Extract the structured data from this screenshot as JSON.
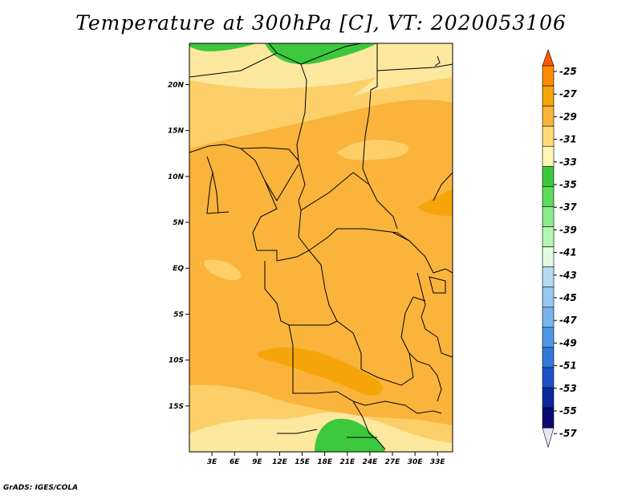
{
  "title": "Temperature at 300hPa [C], VT: 2020053106",
  "credit": "GrADS: IGES/COLA",
  "map": {
    "lat_labels": [
      "20N",
      "15N",
      "10N",
      "5N",
      "EQ",
      "5S",
      "10S",
      "15S"
    ],
    "lat_values": [
      20,
      15,
      10,
      5,
      0,
      -5,
      -10,
      -15
    ],
    "lon_labels": [
      "3E",
      "6E",
      "9E",
      "12E",
      "15E",
      "18E",
      "21E",
      "24E",
      "27E",
      "30E",
      "33E"
    ],
    "lon_values": [
      3,
      6,
      9,
      12,
      15,
      18,
      21,
      24,
      27,
      30,
      33
    ],
    "lon_range": [
      0,
      35
    ],
    "lat_range": [
      -20,
      24.5
    ]
  },
  "legend": {
    "labels": [
      "-25",
      "-27",
      "-29",
      "-31",
      "-33",
      "-35",
      "-37",
      "-39",
      "-41",
      "-43",
      "-45",
      "-47",
      "-49",
      "-51",
      "-53",
      "-55",
      "-57"
    ],
    "colors": [
      "#ff5a00",
      "#ff8c00",
      "#f5a50a",
      "#fab43c",
      "#fddc78",
      "#fff5b4",
      "#3cc83c",
      "#5adc5a",
      "#8ceb8c",
      "#b4f5b4",
      "#e1fae1",
      "#b4dcf5",
      "#96c8f0",
      "#78b4eb",
      "#5096e6",
      "#3278dc",
      "#1e50c8",
      "#0a28a0",
      "#0a0a6e",
      "#e6e6f5"
    ]
  }
}
